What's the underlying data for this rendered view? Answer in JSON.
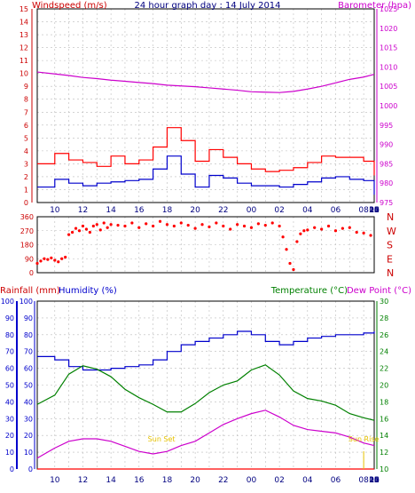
{
  "chart_data": [
    {
      "type": "line",
      "title": "24 hour graph day : 14 July 2014",
      "left_axis_title": "Windspeed (m/s)",
      "right_axis_title": "Barometer (hpa)",
      "left_ylim": [
        0,
        15
      ],
      "left_ticks": [
        "0",
        "1",
        "2",
        "3",
        "4",
        "5",
        "6",
        "7",
        "8",
        "9",
        "10",
        "11",
        "12",
        "13",
        "14",
        "15"
      ],
      "right_ylim": [
        975,
        1025
      ],
      "right_ticks": [
        "975",
        "980",
        "985",
        "990",
        "995",
        "1000",
        "1005",
        "1010",
        "1015",
        "1020",
        "1025"
      ],
      "x_tick_labels": [
        "10",
        "12",
        "14",
        "16",
        "18",
        "20",
        "22",
        "00",
        "02",
        "04",
        "06",
        "08",
        "10",
        "12",
        "14",
        "16",
        "18",
        "20",
        "22",
        "00"
      ],
      "x_range_hours": [
        8.75,
        32.75
      ],
      "grid": true,
      "series": [
        {
          "axis": "right",
          "color": "#cc00cc",
          "x": [
            8.75,
            10,
            11,
            12,
            13,
            14,
            15,
            16,
            17,
            18,
            19,
            20,
            21,
            22,
            23,
            24,
            25,
            26,
            27,
            28,
            29,
            30,
            31,
            32,
            32.75
          ],
          "values": [
            1008.7,
            1008.2,
            1007.8,
            1007.3,
            1007,
            1006.6,
            1006.3,
            1006,
            1005.7,
            1005.3,
            1005.1,
            1004.9,
            1004.6,
            1004.3,
            1004,
            1003.6,
            1003.5,
            1003.4,
            1003.7,
            1004.3,
            1005,
            1005.9,
            1006.8,
            1007.4,
            1008.1
          ]
        },
        {
          "axis": "left",
          "color": "#ff0000",
          "x": [
            8.75,
            10,
            11,
            12,
            13,
            14,
            15,
            16,
            17,
            18,
            19,
            20,
            21,
            22,
            23,
            24,
            25,
            26,
            27,
            28,
            29,
            30,
            31,
            32,
            32.75
          ],
          "values": [
            3,
            3.8,
            3.3,
            3.1,
            2.8,
            3.6,
            3,
            3.3,
            4.3,
            5.8,
            4.8,
            3.2,
            4.1,
            3.5,
            3,
            2.6,
            2.4,
            2.5,
            2.7,
            3.1,
            3.6,
            3.5,
            3.5,
            3.2,
            2.1
          ]
        },
        {
          "axis": "left",
          "color": "#0000cc",
          "x": [
            8.75,
            10,
            11,
            12,
            13,
            14,
            15,
            16,
            17,
            18,
            19,
            20,
            21,
            22,
            23,
            24,
            25,
            26,
            27,
            28,
            29,
            30,
            31,
            32,
            32.75
          ],
          "values": [
            1.2,
            1.8,
            1.5,
            1.3,
            1.5,
            1.6,
            1.7,
            1.8,
            2.6,
            3.6,
            2.2,
            1.2,
            2.1,
            1.9,
            1.5,
            1.3,
            1.3,
            1.2,
            1.4,
            1.6,
            1.9,
            2,
            1.8,
            1.7,
            0.6
          ]
        }
      ]
    },
    {
      "type": "scatter",
      "title": "",
      "ylabel_ticks": [
        "0",
        "90",
        "180",
        "270",
        "360"
      ],
      "compass_labels": [
        "N",
        "W",
        "S",
        "E",
        "N"
      ],
      "ylim": [
        0,
        360
      ],
      "x_range_hours": [
        8.75,
        32.75
      ],
      "grid": true,
      "series": [
        {
          "color": "#ff0000",
          "x": [
            8.75,
            9,
            9.25,
            9.5,
            9.75,
            10,
            10.25,
            10.5,
            10.75,
            11,
            11.25,
            11.5,
            11.75,
            12,
            12.25,
            12.5,
            12.75,
            13,
            13.25,
            13.5,
            13.75,
            14,
            14.5,
            15,
            15.5,
            16,
            16.5,
            17,
            17.5,
            18,
            18.5,
            19,
            19.5,
            20,
            20.5,
            21,
            21.5,
            22,
            22.5,
            23,
            23.5,
            24,
            24.5,
            25,
            25.5,
            26,
            26.25,
            26.5,
            26.75,
            27,
            27.25,
            27.5,
            27.75,
            28,
            28.5,
            29,
            29.5,
            30,
            30.5,
            31,
            31.5,
            32,
            32.5
          ],
          "values": [
            60,
            75,
            90,
            85,
            95,
            80,
            70,
            90,
            100,
            245,
            260,
            285,
            270,
            300,
            280,
            260,
            300,
            310,
            275,
            320,
            290,
            310,
            305,
            300,
            320,
            290,
            315,
            300,
            330,
            310,
            300,
            320,
            305,
            285,
            310,
            295,
            320,
            300,
            280,
            310,
            300,
            290,
            315,
            305,
            320,
            300,
            230,
            150,
            60,
            20,
            200,
            250,
            270,
            275,
            290,
            280,
            300,
            270,
            285,
            290,
            260,
            255,
            240
          ]
        }
      ]
    },
    {
      "type": "line",
      "title": "",
      "left_axis_titles": [
        "Rainfall (mm)",
        "Humidity (%)"
      ],
      "right_axis_titles": [
        "Temperature (°C)",
        "Dew Point (°C)"
      ],
      "left_ylim": [
        0,
        100
      ],
      "left_ticks": [
        "0",
        "10",
        "20",
        "30",
        "40",
        "50",
        "60",
        "70",
        "80",
        "90",
        "100"
      ],
      "right_ylim": [
        10,
        30
      ],
      "right_ticks": [
        "10",
        "12",
        "14",
        "16",
        "18",
        "20",
        "22",
        "24",
        "26",
        "28",
        "30"
      ],
      "x_tick_labels": [
        "10",
        "12",
        "14",
        "16",
        "18",
        "20",
        "22",
        "00",
        "02",
        "04",
        "06",
        "08",
        "10",
        "12",
        "14",
        "16",
        "18",
        "20",
        "22",
        "00"
      ],
      "x_range_hours": [
        8.75,
        32.75
      ],
      "annotations": [
        "Sun Set",
        "Sun Rise"
      ],
      "grid": true,
      "series": [
        {
          "axis": "left",
          "color": "#0000cc",
          "x": [
            8.75,
            10,
            11,
            12,
            13,
            14,
            15,
            16,
            17,
            18,
            19,
            20,
            21,
            22,
            23,
            24,
            25,
            26,
            27,
            28,
            29,
            30,
            31,
            32,
            32.75
          ],
          "values": [
            67,
            65,
            61,
            59,
            59,
            60,
            61,
            62,
            65,
            70,
            74,
            76,
            78,
            80,
            82,
            80,
            76,
            74,
            76,
            78,
            79,
            80,
            80,
            81,
            82
          ]
        },
        {
          "axis": "right",
          "color": "#008000",
          "x": [
            8.75,
            10,
            11,
            12,
            13,
            14,
            15,
            16,
            17,
            18,
            19,
            20,
            21,
            22,
            23,
            24,
            25,
            26,
            27,
            28,
            29,
            30,
            31,
            32,
            32.75
          ],
          "values": [
            17.7,
            18.8,
            21.3,
            22.3,
            21.9,
            21,
            19.5,
            18.5,
            17.7,
            16.8,
            16.8,
            17.8,
            19.1,
            20,
            20.5,
            21.8,
            22.4,
            21.2,
            19.3,
            18.4,
            18.1,
            17.6,
            16.6,
            16.1,
            15.8
          ]
        },
        {
          "axis": "right",
          "color": "#cc00cc",
          "x": [
            8.75,
            10,
            11,
            12,
            13,
            14,
            15,
            16,
            17,
            18,
            19,
            20,
            21,
            22,
            23,
            24,
            25,
            26,
            27,
            28,
            29,
            30,
            31,
            32,
            32.75
          ],
          "values": [
            11.3,
            12.5,
            13.3,
            13.6,
            13.6,
            13.3,
            12.7,
            12.1,
            11.8,
            12.1,
            12.8,
            13.3,
            14.3,
            15.3,
            16,
            16.6,
            17,
            16.2,
            15.2,
            14.7,
            14.5,
            14.3,
            13.8,
            13.1,
            12.8
          ]
        },
        {
          "axis": "left",
          "color": "#ff0000",
          "x": [
            8.75,
            32.75
          ],
          "values": [
            0,
            0
          ]
        }
      ]
    }
  ]
}
